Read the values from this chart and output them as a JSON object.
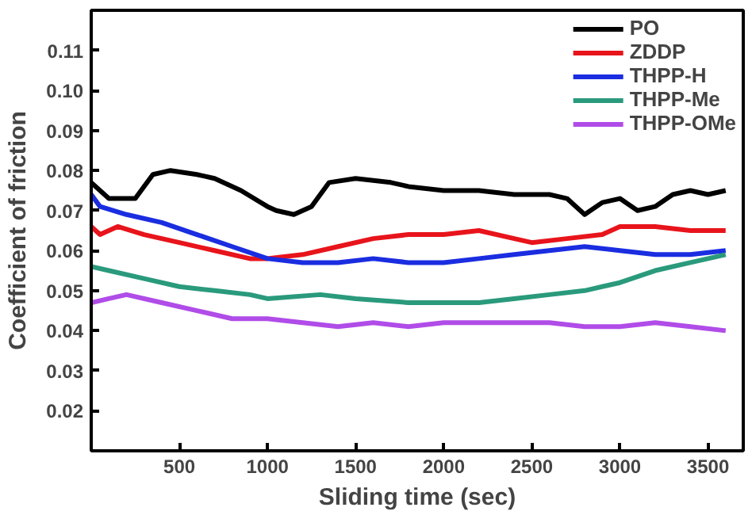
{
  "chart_data": {
    "type": "line",
    "xlabel": "Sliding time (sec)",
    "ylabel": "Coefficient of friction",
    "xlim": [
      0,
      3700
    ],
    "ylim": [
      0.01,
      0.12
    ],
    "xticks": [
      500,
      1000,
      1500,
      2000,
      2500,
      3000,
      3500
    ],
    "yticks": [
      0.02,
      0.03,
      0.04,
      0.05,
      0.06,
      0.07,
      0.08,
      0.09,
      {
        "value": 0.1,
        "label": "0.10"
      },
      0.11
    ],
    "grid": false,
    "legend": "top right",
    "marker": "none",
    "line_style": "solid",
    "series": [
      {
        "name": "PO",
        "color": "#000000",
        "x": [
          0,
          100,
          250,
          350,
          450,
          600,
          700,
          850,
          1000,
          1050,
          1150,
          1250,
          1350,
          1500,
          1700,
          1800,
          2000,
          2200,
          2400,
          2600,
          2700,
          2800,
          2900,
          3000,
          3100,
          3200,
          3300,
          3400,
          3500,
          3600
        ],
        "values": [
          0.077,
          0.073,
          0.073,
          0.079,
          0.08,
          0.079,
          0.078,
          0.075,
          0.071,
          0.07,
          0.069,
          0.071,
          0.077,
          0.078,
          0.077,
          0.076,
          0.075,
          0.075,
          0.074,
          0.074,
          0.073,
          0.069,
          0.072,
          0.073,
          0.07,
          0.071,
          0.074,
          0.075,
          0.074,
          0.075
        ]
      },
      {
        "name": "ZDDP",
        "color": "#e8141b",
        "x": [
          0,
          50,
          150,
          300,
          500,
          700,
          900,
          1000,
          1200,
          1400,
          1600,
          1800,
          2000,
          2200,
          2400,
          2500,
          2700,
          2900,
          3000,
          3200,
          3400,
          3600
        ],
        "values": [
          0.066,
          0.064,
          0.066,
          0.064,
          0.062,
          0.06,
          0.058,
          0.058,
          0.059,
          0.061,
          0.063,
          0.064,
          0.064,
          0.065,
          0.063,
          0.062,
          0.063,
          0.064,
          0.066,
          0.066,
          0.065,
          0.065
        ]
      },
      {
        "name": "THPP-H",
        "color": "#1a2de0",
        "x": [
          0,
          50,
          200,
          400,
          600,
          800,
          1000,
          1200,
          1400,
          1600,
          1800,
          2000,
          2200,
          2400,
          2600,
          2800,
          3000,
          3200,
          3400,
          3600
        ],
        "values": [
          0.074,
          0.071,
          0.069,
          0.067,
          0.064,
          0.061,
          0.058,
          0.057,
          0.057,
          0.058,
          0.057,
          0.057,
          0.058,
          0.059,
          0.06,
          0.061,
          0.06,
          0.059,
          0.059,
          0.06
        ]
      },
      {
        "name": "THPP-Me",
        "color": "#2a9a7c",
        "x": [
          0,
          100,
          300,
          500,
          700,
          900,
          1000,
          1300,
          1500,
          1800,
          2000,
          2200,
          2400,
          2600,
          2800,
          3000,
          3200,
          3400,
          3600
        ],
        "values": [
          0.056,
          0.055,
          0.053,
          0.051,
          0.05,
          0.049,
          0.048,
          0.049,
          0.048,
          0.047,
          0.047,
          0.047,
          0.048,
          0.049,
          0.05,
          0.052,
          0.055,
          0.057,
          0.059
        ]
      },
      {
        "name": "THPP-OMe",
        "color": "#b04ce8",
        "x": [
          0,
          100,
          200,
          400,
          600,
          800,
          1000,
          1200,
          1400,
          1600,
          1800,
          2000,
          2200,
          2400,
          2600,
          2800,
          3000,
          3200,
          3400,
          3600
        ],
        "values": [
          0.047,
          0.048,
          0.049,
          0.047,
          0.045,
          0.043,
          0.043,
          0.042,
          0.041,
          0.042,
          0.041,
          0.042,
          0.042,
          0.042,
          0.042,
          0.041,
          0.041,
          0.042,
          0.041,
          0.04
        ]
      }
    ]
  }
}
